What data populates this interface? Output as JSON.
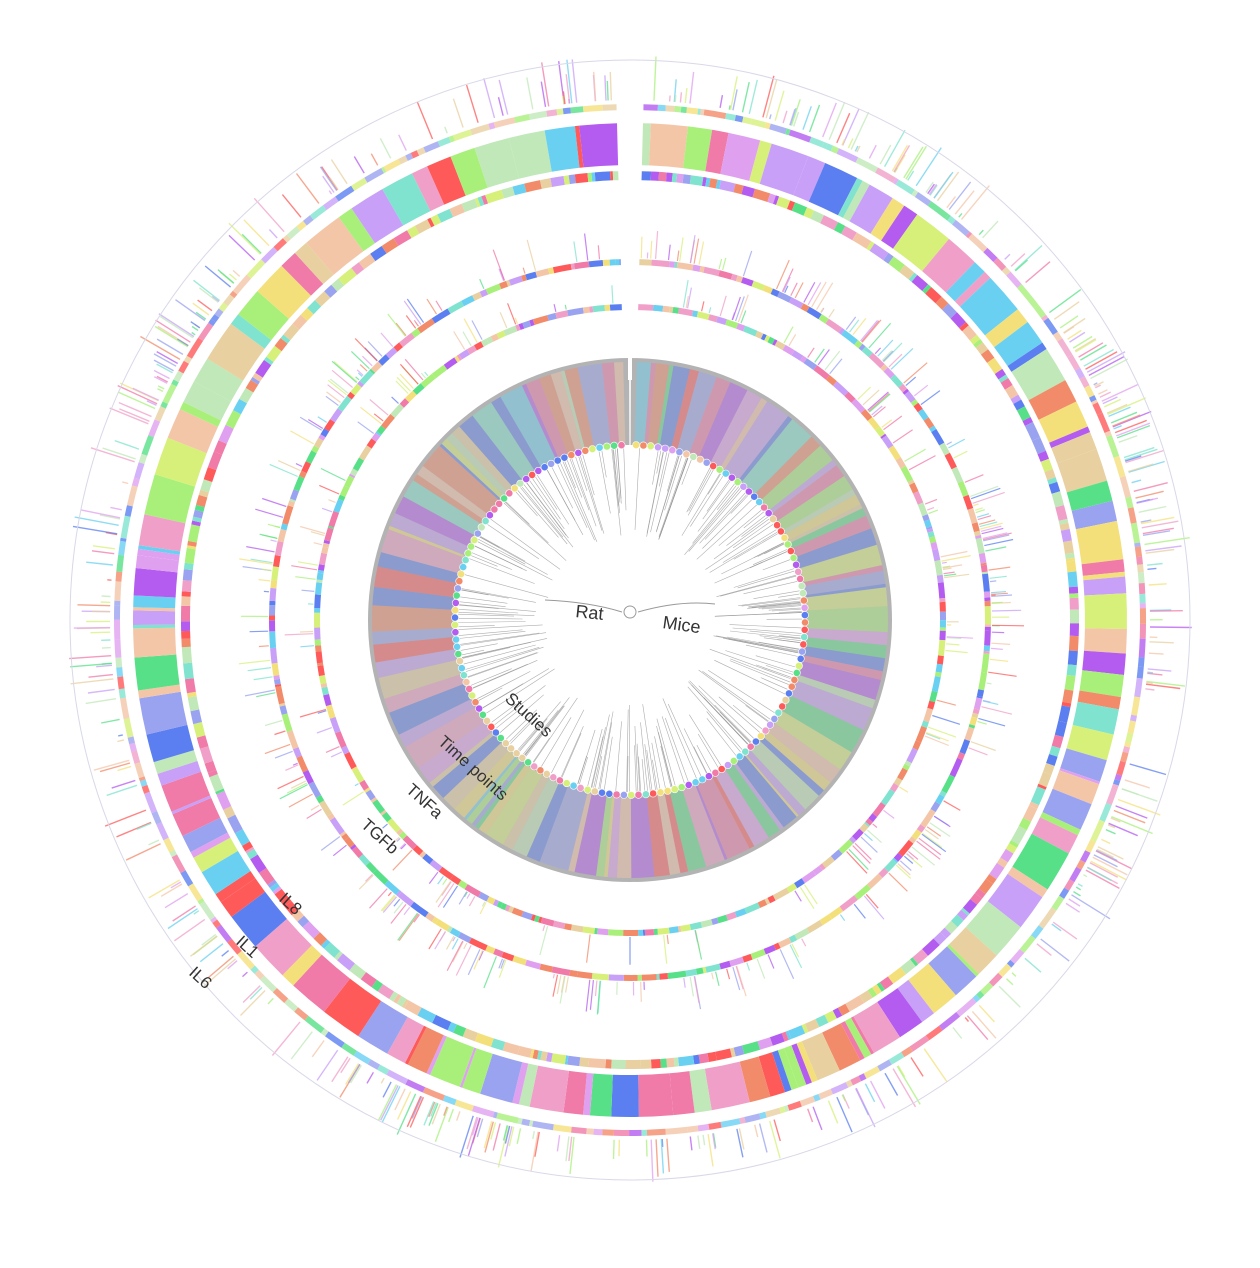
{
  "labels": {
    "rat": "Rat",
    "mice": "Mice",
    "studies": "Studies",
    "time_points": "Time points",
    "tnfa": "TNFa",
    "tgfb": "TGFb",
    "il8": "IL8",
    "il1": "IL1",
    "il6": "IL6"
  },
  "palette": [
    "#f4c6a8",
    "#9aa3ef",
    "#b45cf0",
    "#7fe3cf",
    "#f07aa8",
    "#a8f07a",
    "#f4e07a",
    "#5b7ff0",
    "#e0a0f0",
    "#f28b6a",
    "#6ad0f2",
    "#d6f07a",
    "#f0a0c8",
    "#c0e8b8",
    "#ff5a5a",
    "#58e088",
    "#e8d0a0",
    "#c8a0f8"
  ],
  "chart_data": {
    "type": "circular-tree",
    "groups": [
      "Rat",
      "Mice"
    ],
    "tracks": [
      "Studies",
      "Time points",
      "TNFa",
      "TGFb",
      "IL8",
      "IL1",
      "IL6"
    ]
  }
}
